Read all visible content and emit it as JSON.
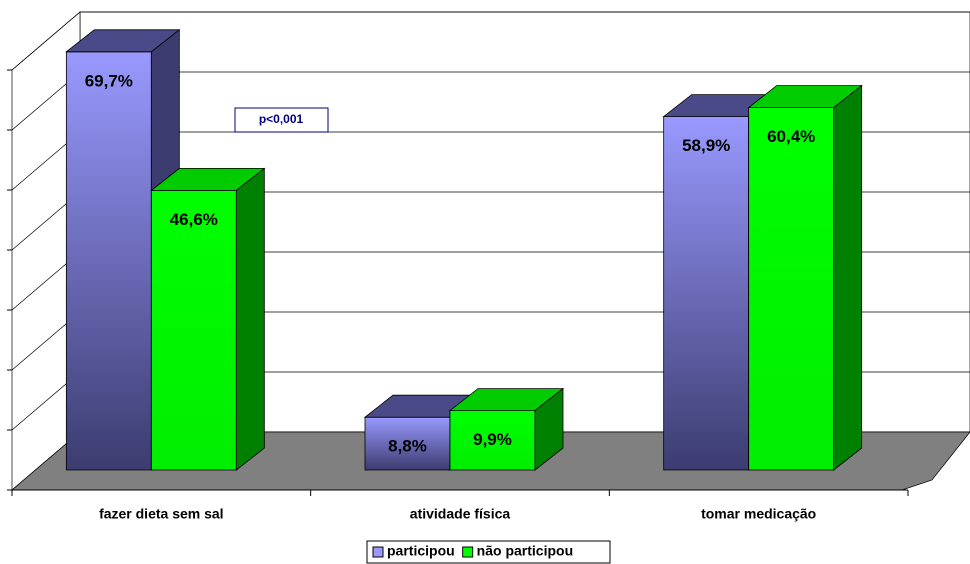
{
  "chart_data": {
    "type": "bar3d",
    "categories": [
      "fazer dieta sem sal",
      "atividade física",
      "tomar medicação"
    ],
    "series": [
      {
        "name": "participou",
        "color": "#9999ff",
        "values": [
          69.7,
          8.8,
          58.9
        ],
        "value_labels": [
          "69,7%",
          "8,8%",
          "58,9%"
        ]
      },
      {
        "name": "não participou",
        "color": "#00ff00",
        "values": [
          46.6,
          9.9,
          60.4
        ],
        "value_labels": [
          "46,6%",
          "9,9%",
          "60,4%"
        ]
      }
    ],
    "ylim": [
      0,
      70
    ],
    "yticks": [
      0,
      10,
      20,
      30,
      40,
      50,
      60,
      70
    ],
    "grid": true,
    "annotation": "p<0,001",
    "legend": "bottom"
  }
}
